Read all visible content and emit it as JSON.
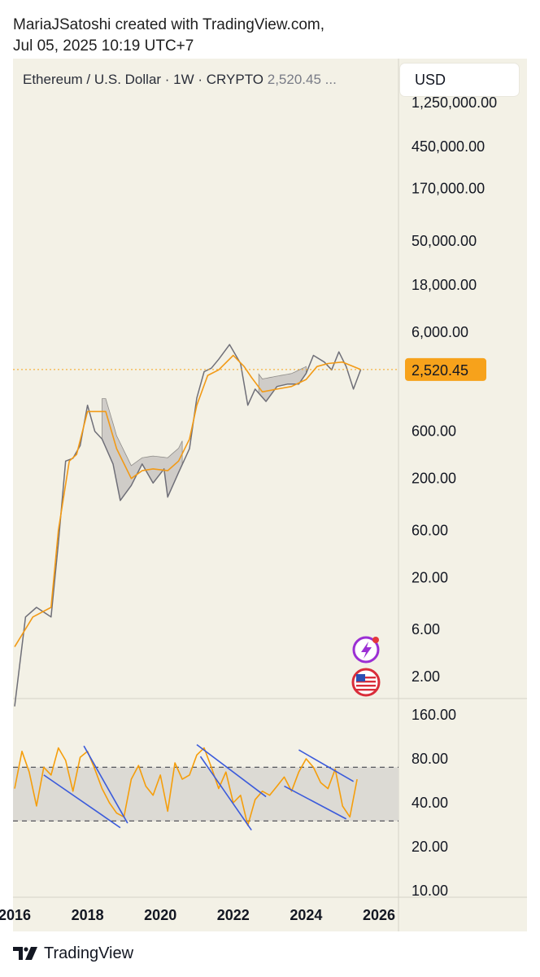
{
  "header": {
    "line1": "MariaJSatoshi created with TradingView.com,",
    "line2": "Jul 05, 2025 10:19 UTC+7"
  },
  "toolbar": {
    "symbol_title": "Ethereum / U.S. Dollar · 1W · CRYPTO",
    "last_value": "2,520.45 ...",
    "currency_button": "USD"
  },
  "footer": {
    "brand": "TradingView"
  },
  "icons": [
    "lightning-icon",
    "us-flag-icon",
    "tradingview-logo-icon"
  ],
  "colors": {
    "background": "#f3f1e6",
    "price_line": "#6f6f78",
    "ma_line": "#f29a16",
    "cloud_fill": "#c8c6c2",
    "rsi_line": "#f59e0b",
    "trendline": "#3b5bdb",
    "rsi_band": "#dcdad4",
    "price_tag": "#f7a21b"
  },
  "chart_data": [
    {
      "type": "line",
      "scale": "log",
      "y_ticks": [
        "1,250,000.00",
        "450,000.00",
        "170,000.00",
        "50,000.00",
        "18,000.00",
        "6,000.00",
        "600.00",
        "200.00",
        "60.00",
        "20.00",
        "6.00",
        "2.00"
      ],
      "y_tick_values": [
        1250000,
        450000,
        170000,
        50000,
        18000,
        6000,
        600,
        200,
        60,
        20,
        6,
        2
      ],
      "last_price_label": "2,520.45",
      "last_price": 2520.45,
      "series": [
        {
          "x": [
            2016.0,
            2016.3,
            2016.6,
            2017.0,
            2017.2,
            2017.4,
            2017.6,
            2017.8,
            2018.0,
            2018.2,
            2018.4,
            2018.7,
            2018.9,
            2019.2,
            2019.5,
            2019.8,
            2020.1,
            2020.2,
            2020.5,
            2020.8,
            2021.0,
            2021.2,
            2021.4,
            2021.6,
            2021.9,
            2022.2,
            2022.4,
            2022.6,
            2022.9,
            2023.2,
            2023.5,
            2023.8,
            2024.0,
            2024.2,
            2024.5,
            2024.7,
            2024.9,
            2025.1,
            2025.3,
            2025.5
          ],
          "values": [
            1,
            8,
            10,
            8,
            45,
            300,
            320,
            430,
            1100,
            600,
            500,
            280,
            120,
            170,
            280,
            180,
            250,
            130,
            230,
            400,
            1300,
            2400,
            2600,
            3200,
            4500,
            2900,
            1100,
            1600,
            1200,
            1700,
            1800,
            1800,
            2300,
            3500,
            3000,
            2500,
            3800,
            2700,
            1600,
            2520
          ]
        },
        {
          "x": [
            2016.0,
            2016.5,
            2017.0,
            2017.2,
            2017.5,
            2017.7,
            2018.0,
            2018.5,
            2018.8,
            2019.2,
            2019.5,
            2019.8,
            2020.2,
            2020.5,
            2020.8,
            2021.0,
            2021.3,
            2021.6,
            2022.0,
            2022.3,
            2022.5,
            2022.8,
            2023.2,
            2023.6,
            2024.0,
            2024.3,
            2024.6,
            2025.0,
            2025.5
          ],
          "values": [
            4,
            8,
            10,
            60,
            300,
            350,
            950,
            950,
            400,
            200,
            240,
            250,
            240,
            300,
            500,
            1100,
            2200,
            2500,
            3500,
            2700,
            2100,
            1500,
            1600,
            1700,
            2000,
            2700,
            2900,
            3000,
            2520
          ]
        }
      ]
    },
    {
      "type": "line",
      "y_ticks": [
        "160.00",
        "80.00",
        "40.00",
        "20.00",
        "10.00"
      ],
      "y_tick_values": [
        160,
        80,
        40,
        20,
        10
      ],
      "band": [
        70,
        30
      ],
      "x_ticks": [
        "2016",
        "2018",
        "2020",
        "2022",
        "2024",
        "2026"
      ],
      "series": [
        {
          "x": [
            2016.0,
            2016.2,
            2016.4,
            2016.6,
            2016.8,
            2017.0,
            2017.2,
            2017.4,
            2017.6,
            2017.8,
            2018.0,
            2018.2,
            2018.4,
            2018.6,
            2018.8,
            2019.0,
            2019.2,
            2019.4,
            2019.6,
            2019.8,
            2020.0,
            2020.2,
            2020.4,
            2020.6,
            2020.8,
            2021.0,
            2021.2,
            2021.4,
            2021.6,
            2021.8,
            2022.0,
            2022.2,
            2022.4,
            2022.6,
            2022.8,
            2023.0,
            2023.2,
            2023.4,
            2023.6,
            2023.8,
            2024.0,
            2024.2,
            2024.4,
            2024.6,
            2024.8,
            2025.0,
            2025.2,
            2025.4
          ],
          "values": [
            50,
            90,
            65,
            38,
            70,
            62,
            95,
            78,
            48,
            82,
            90,
            68,
            50,
            40,
            34,
            32,
            58,
            72,
            52,
            45,
            62,
            35,
            75,
            58,
            62,
            85,
            95,
            70,
            50,
            65,
            40,
            45,
            28,
            42,
            48,
            45,
            52,
            60,
            48,
            65,
            80,
            70,
            55,
            50,
            68,
            38,
            32,
            58
          ]
        }
      ],
      "trendlines": [
        {
          "x": [
            2016.8,
            2018.9
          ],
          "values": [
            62,
            27
          ]
        },
        {
          "x": [
            2017.9,
            2019.1
          ],
          "values": [
            98,
            29
          ]
        },
        {
          "x": [
            2021.0,
            2022.9
          ],
          "values": [
            100,
            44
          ]
        },
        {
          "x": [
            2021.1,
            2022.5
          ],
          "values": [
            83,
            26
          ]
        },
        {
          "x": [
            2023.8,
            2025.3
          ],
          "values": [
            92,
            56
          ]
        },
        {
          "x": [
            2023.4,
            2025.1
          ],
          "values": [
            52,
            31
          ]
        }
      ]
    }
  ]
}
